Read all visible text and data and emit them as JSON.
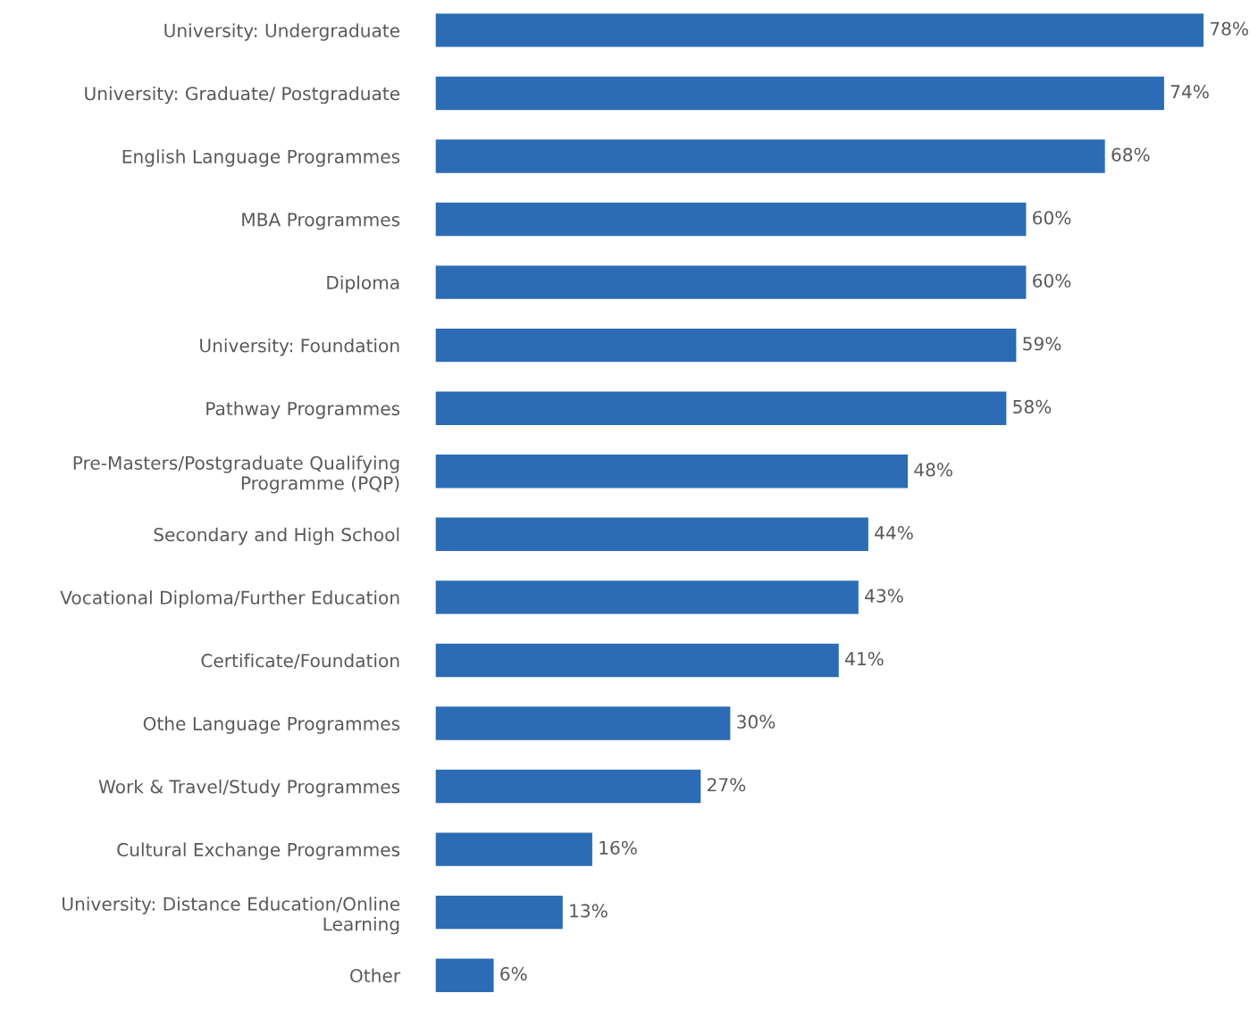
{
  "chart_data": {
    "type": "bar",
    "orientation": "horizontal",
    "categories": [
      "University: Undergraduate",
      "University: Graduate/ Postgraduate",
      "English Language Programmes",
      "MBA Programmes",
      "Diploma",
      "University: Foundation",
      "Pathway Programmes",
      "Pre-Masters/Postgraduate Qualifying\nProgramme (PQP)",
      "Secondary and High School",
      "Vocational Diploma/Further Education",
      "Certificate/Foundation",
      "Othe Language Programmes",
      "Work & Travel/Study Programmes",
      "Cultural Exchange Programmes",
      "University: Distance Education/Online\nLearning",
      "Other"
    ],
    "values": [
      78,
      74,
      68,
      60,
      60,
      59,
      58,
      48,
      44,
      43,
      41,
      30,
      27,
      16,
      13,
      6
    ],
    "value_labels": [
      "78%",
      "74%",
      "68%",
      "60%",
      "60%",
      "59%",
      "58%",
      "48%",
      "44%",
      "43%",
      "41%",
      "30%",
      "27%",
      "16%",
      "13%",
      "6%"
    ],
    "color": "#2b6cb4",
    "grid": false,
    "legend": false
  }
}
